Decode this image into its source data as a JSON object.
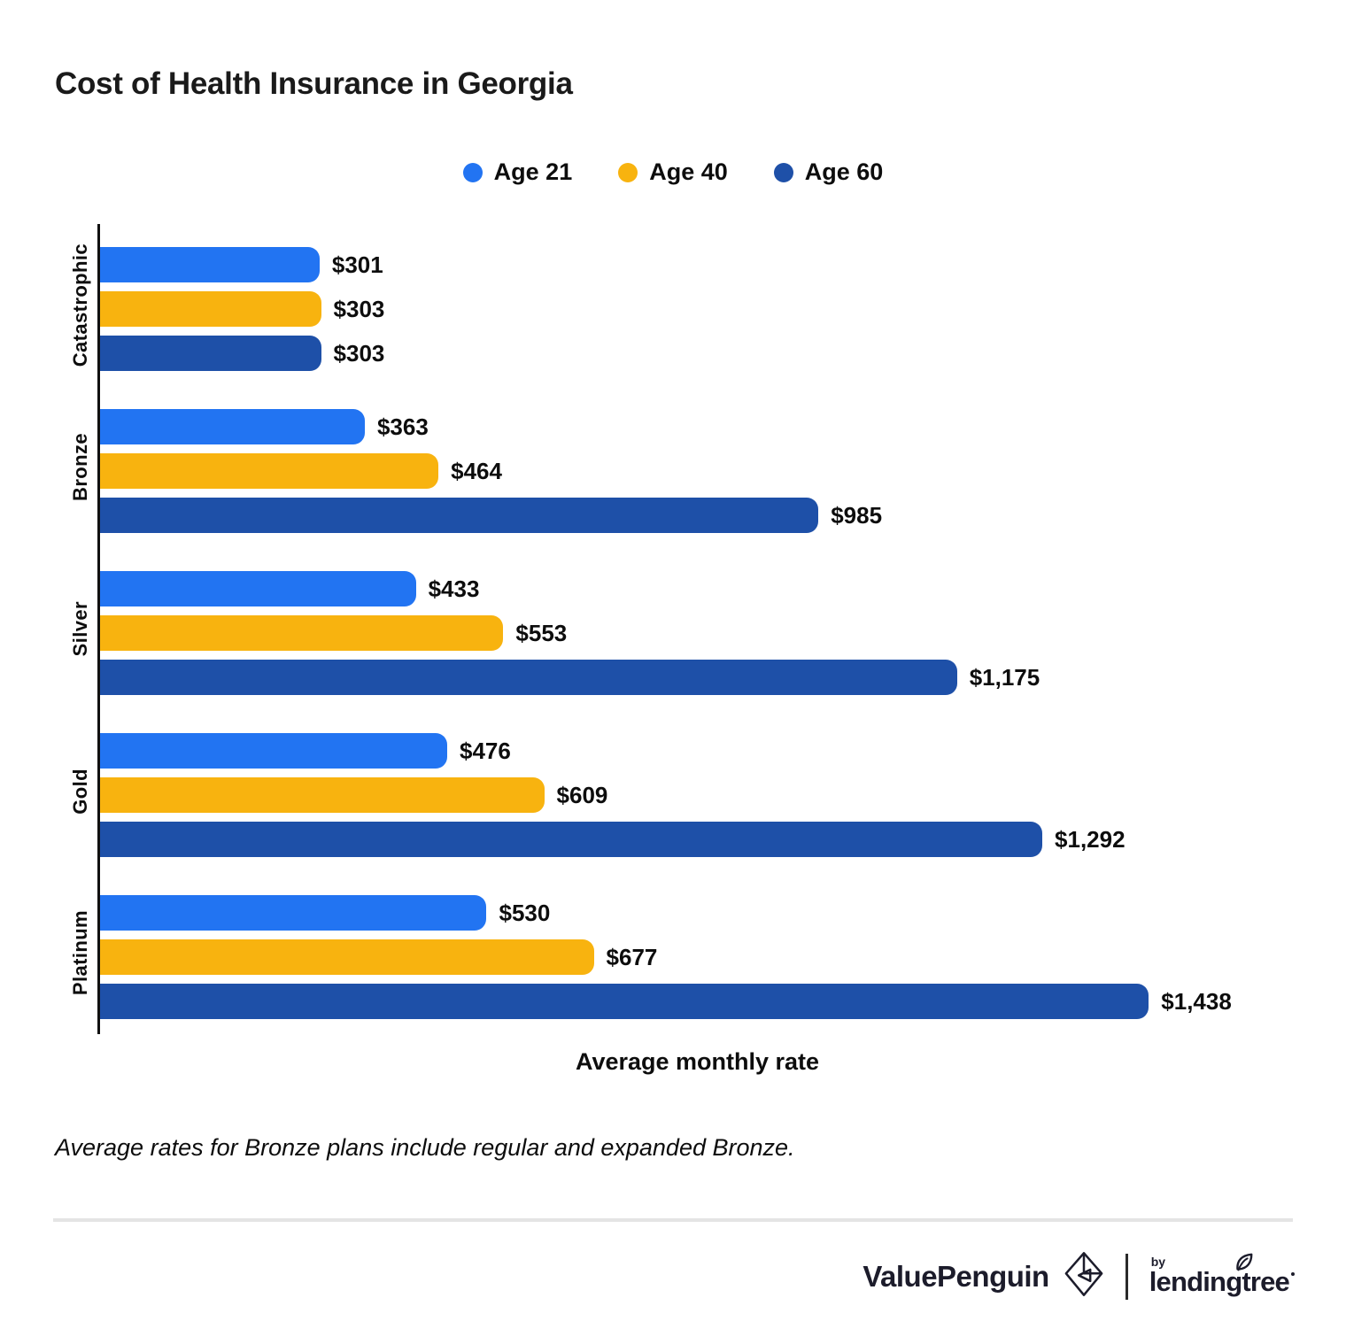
{
  "chart_data": {
    "type": "bar",
    "orientation": "horizontal",
    "title": "Cost of Health Insurance in Georgia",
    "categories": [
      "Catastrophic",
      "Bronze",
      "Silver",
      "Gold",
      "Platinum"
    ],
    "series": [
      {
        "name": "Age 21",
        "color": "#2274f2",
        "values": [
          301,
          363,
          433,
          476,
          530
        ],
        "labels": [
          "$301",
          "$363",
          "$433",
          "$476",
          "$530"
        ]
      },
      {
        "name": "Age 40",
        "color": "#f8b30f",
        "values": [
          303,
          464,
          553,
          609,
          677
        ],
        "labels": [
          "$303",
          "$464",
          "$553",
          "$609",
          "$677"
        ]
      },
      {
        "name": "Age 60",
        "color": "#1e50a8",
        "values": [
          303,
          985,
          1175,
          1292,
          1438
        ],
        "labels": [
          "$303",
          "$985",
          "$1,175",
          "$1,292",
          "$1,438"
        ]
      }
    ],
    "xlabel": "Average monthly rate",
    "xlim": [
      0,
      1638
    ],
    "grid": false,
    "legend_position": "top-center"
  },
  "footnote": "Average rates for Bronze plans include regular and expanded Bronze.",
  "footer": {
    "brand": "ValuePenguin",
    "byline": "by",
    "parent_brand": "lendingtree"
  }
}
